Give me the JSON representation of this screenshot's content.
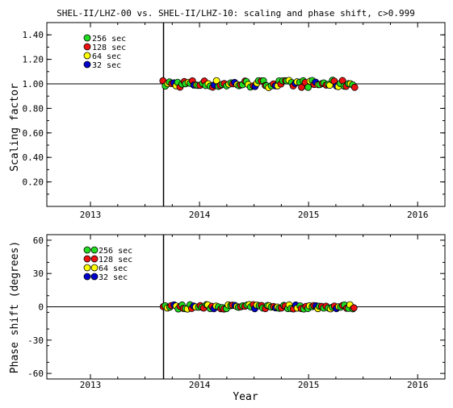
{
  "chart_data": [
    {
      "type": "scatter",
      "title": "SHEL-II/LHZ-00 vs. SHEL-II/LHZ-10: scaling and phase shift, c>0.999",
      "xlabel": "",
      "ylabel": "Scaling factor",
      "xlim": [
        2012.6,
        2016.25
      ],
      "ylim": [
        0.0,
        1.5
      ],
      "x_ticks": [
        "2013",
        "2014",
        "2015",
        "2016"
      ],
      "x_tick_values": [
        2013,
        2014,
        2015,
        2016
      ],
      "y_ticks": [
        "0.20",
        "0.40",
        "0.60",
        "0.80",
        "1.00",
        "1.20",
        "1.40"
      ],
      "y_tick_values": [
        0.2,
        0.4,
        0.6,
        0.8,
        1.0,
        1.2,
        1.4
      ],
      "reference_line": 1.0,
      "event_line_x": 2013.67,
      "legend_position": "top-left",
      "series": [
        {
          "name": "256 sec",
          "color": "#22dd22"
        },
        {
          "name": "128 sec",
          "color": "#ee1111"
        },
        {
          "name": "64 sec",
          "color": "#ffff00"
        },
        {
          "name": "32 sec",
          "color": "#0000cc"
        }
      ],
      "x_range": [
        2013.67,
        2015.42
      ],
      "values_summary": {
        "center": 1.0,
        "spread": 0.03
      }
    },
    {
      "type": "scatter",
      "xlabel": "Year",
      "ylabel": "Phase shift (degrees)",
      "xlim": [
        2012.6,
        2016.25
      ],
      "ylim": [
        -65,
        65
      ],
      "x_ticks": [
        "2013",
        "2014",
        "2015",
        "2016"
      ],
      "x_tick_values": [
        2013,
        2014,
        2015,
        2016
      ],
      "y_ticks": [
        "-60",
        "-30",
        "0",
        "30",
        "60"
      ],
      "y_tick_values": [
        -60,
        -30,
        0,
        30,
        60
      ],
      "reference_line": 0,
      "event_line_x": 2013.67,
      "legend_position": "top-left",
      "series": [
        {
          "name": "256 sec",
          "color": "#22dd22"
        },
        {
          "name": "128 sec",
          "color": "#ee1111"
        },
        {
          "name": "64 sec",
          "color": "#ffff00"
        },
        {
          "name": "32 sec",
          "color": "#0000cc"
        }
      ],
      "x_range": [
        2013.67,
        2015.42
      ],
      "values_summary": {
        "center": 0,
        "spread": 2
      }
    }
  ]
}
